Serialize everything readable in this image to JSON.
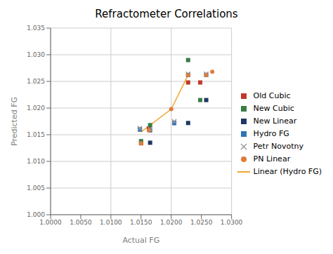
{
  "chart_data": {
    "type": "scatter",
    "title": "Refractometer Correlations",
    "xlabel": "Actual FG",
    "ylabel": "Predicted FG",
    "xlim": [
      1.0,
      1.03
    ],
    "ylim": [
      1.0,
      1.035
    ],
    "xticks": [
      {
        "value": 1.0,
        "label": "1.0000"
      },
      {
        "value": 1.005,
        "label": "1.0050"
      },
      {
        "value": 1.01,
        "label": "1.0100"
      },
      {
        "value": 1.015,
        "label": "1.0150"
      },
      {
        "value": 1.02,
        "label": "1.0200"
      },
      {
        "value": 1.025,
        "label": "1.0250"
      },
      {
        "value": 1.03,
        "label": "1.0300"
      }
    ],
    "yticks": [
      {
        "value": 1.0,
        "label": "1.000"
      },
      1.005,
      {
        "value": 1.01,
        "label": "1.010"
      },
      1.015,
      {
        "value": 1.02,
        "label": "1.020"
      },
      1.025,
      {
        "value": 1.03,
        "label": "1.030"
      },
      1.035
    ],
    "grid": true,
    "legend": "right",
    "series": [
      {
        "name": "Old Cubic",
        "color": "#C0392B",
        "marker": "square",
        "x": [
          1.015,
          1.0163,
          1.0228,
          1.0248
        ],
        "values": [
          1.0134,
          1.0162,
          1.0248,
          1.0248
        ]
      },
      {
        "name": "New Cubic",
        "color": "#3A7D44",
        "marker": "square",
        "x": [
          1.015,
          1.0165,
          1.0228,
          1.0248
        ],
        "values": [
          1.0138,
          1.0168,
          1.029,
          1.0215
        ]
      },
      {
        "name": "New Linear",
        "color": "#1F3864",
        "marker": "square",
        "x": [
          1.0148,
          1.0165,
          1.0205,
          1.0228,
          1.0258
        ],
        "values": [
          1.016,
          1.0135,
          1.0172,
          1.0172,
          1.0215
        ]
      },
      {
        "name": "Hydro FG",
        "color": "#2E75B6",
        "marker": "square",
        "x": [
          1.0148,
          1.0165,
          1.0205,
          1.0228,
          1.0258
        ],
        "values": [
          1.016,
          1.0158,
          1.0172,
          1.0262,
          1.0262
        ]
      },
      {
        "name": "Petr Novotny",
        "color": "#999999",
        "marker": "x",
        "x": [
          1.0148,
          1.0165,
          1.0205,
          1.0228,
          1.0258
        ],
        "values": [
          1.0162,
          1.016,
          1.0175,
          1.0264,
          1.0264
        ]
      },
      {
        "name": "PN Linear",
        "color": "#E07B39",
        "marker": "circle",
        "x": [
          1.015,
          1.0163,
          1.02,
          1.0228,
          1.0258,
          1.0268
        ],
        "values": [
          1.0134,
          1.0158,
          1.0198,
          1.0262,
          1.0262,
          1.0268
        ]
      },
      {
        "name": "Linear (Hydro FG)",
        "type": "line",
        "color": "#F0A830",
        "x": [
          1.015,
          1.02,
          1.0228
        ],
        "values": [
          1.0155,
          1.0198,
          1.0262
        ]
      }
    ]
  }
}
